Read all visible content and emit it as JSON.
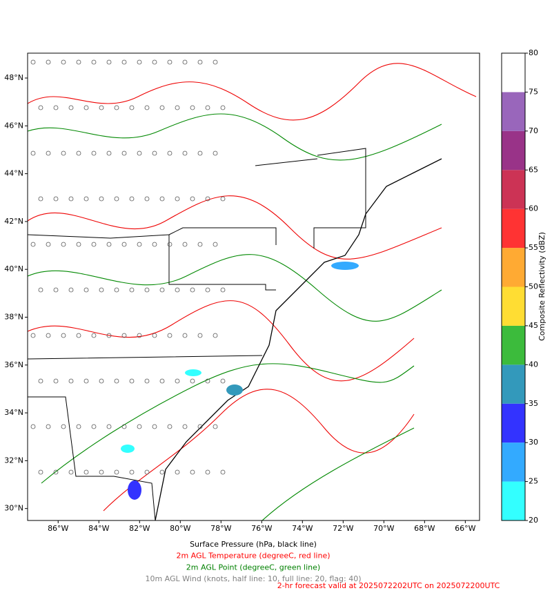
{
  "map": {
    "xlim": [
      -87.5,
      -65.3
    ],
    "ylim": [
      29.5,
      49.04
    ],
    "xticks": [
      {
        "value": -86,
        "label": "86°W"
      },
      {
        "value": -84,
        "label": "84°W"
      },
      {
        "value": -82,
        "label": "82°W"
      },
      {
        "value": -80,
        "label": "80°W"
      },
      {
        "value": -78,
        "label": "78°W"
      },
      {
        "value": -76,
        "label": "76°W"
      },
      {
        "value": -74,
        "label": "74°W"
      },
      {
        "value": -72,
        "label": "72°W"
      },
      {
        "value": -70,
        "label": "70°W"
      },
      {
        "value": -68,
        "label": "68°W"
      },
      {
        "value": -66,
        "label": "66°W"
      }
    ],
    "yticks": [
      {
        "value": 30,
        "label": "30°N"
      },
      {
        "value": 32,
        "label": "32°N"
      },
      {
        "value": 34,
        "label": "34°N"
      },
      {
        "value": 36,
        "label": "36°N"
      },
      {
        "value": 38,
        "label": "38°N"
      },
      {
        "value": 40,
        "label": "40°N"
      },
      {
        "value": 42,
        "label": "42°N"
      },
      {
        "value": 44,
        "label": "44°N"
      },
      {
        "value": 46,
        "label": "46°N"
      },
      {
        "value": 48,
        "label": "48°N"
      }
    ]
  },
  "colorbar": {
    "label": "Composite Reflectivity (dBZ)",
    "lim": [
      20,
      80
    ],
    "ticks": [
      20,
      25,
      30,
      35,
      40,
      45,
      50,
      55,
      60,
      65,
      70,
      75,
      80
    ],
    "colors": [
      "#33ffff",
      "#33aaff",
      "#3333ff",
      "#3399bb",
      "#3cbb3c",
      "#ffdd33",
      "#ffaa33",
      "#ff3333",
      "#cc3355",
      "#993388",
      "#9966bb",
      "#ffffff"
    ]
  },
  "captions": [
    {
      "text": "Surface Pressure (hPa, black line)",
      "color": "#000000"
    },
    {
      "text": "2m AGL Temperature (degreeC, red line)",
      "color": "#ff0000"
    },
    {
      "text": "2m AGL Point (degreeC, green line)",
      "color": "#008000"
    },
    {
      "text": "10m AGL Wind (knots, half line: 10, full line: 20, flag: 40)",
      "color": "#808080"
    }
  ],
  "forecast": {
    "text": "2-hr forecast valid at 2025072202UTC on 2025072200UTC",
    "color": "#ff0000"
  }
}
